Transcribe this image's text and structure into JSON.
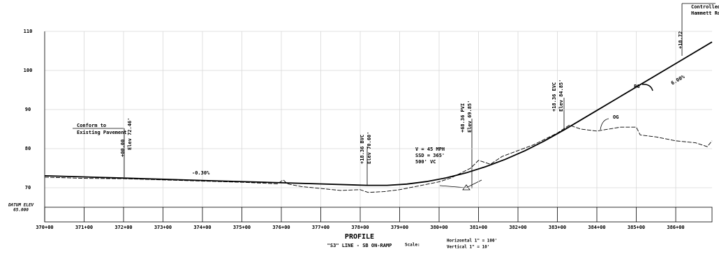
{
  "chart_data": {
    "type": "line",
    "xlim": [
      370,
      386.92
    ],
    "ylim": [
      65,
      110
    ],
    "xticks": [
      {
        "value": 370,
        "label": "370+00"
      },
      {
        "value": 371,
        "label": "371+00"
      },
      {
        "value": 372,
        "label": "372+00"
      },
      {
        "value": 373,
        "label": "373+00"
      },
      {
        "value": 374,
        "label": "374+00"
      },
      {
        "value": 375,
        "label": "375+00"
      },
      {
        "value": 376,
        "label": "376+00"
      },
      {
        "value": 377,
        "label": "377+00"
      },
      {
        "value": 378,
        "label": "378+00"
      },
      {
        "value": 379,
        "label": "379+00"
      },
      {
        "value": 380,
        "label": "380+00"
      },
      {
        "value": 381,
        "label": "381+00"
      },
      {
        "value": 382,
        "label": "382+00"
      },
      {
        "value": 383,
        "label": "383+00"
      },
      {
        "value": 384,
        "label": "384+00"
      },
      {
        "value": 385,
        "label": "385+00"
      },
      {
        "value": 386,
        "label": "386+00"
      }
    ],
    "yticks": [
      70,
      80,
      90,
      100,
      110
    ],
    "grid": true,
    "series": [
      {
        "name": "PG",
        "color": "#000000",
        "x": [
          370,
          372,
          374,
          376,
          378.18,
          378.68,
          379.18,
          379.68,
          380.18,
          380.68,
          381.18,
          381.68,
          382.18,
          382.68,
          383.18,
          384,
          385,
          386,
          386.92
        ],
        "values": [
          73.06,
          72.46,
          71.86,
          71.26,
          70.6,
          70.61,
          70.93,
          71.57,
          72.52,
          73.79,
          75.37,
          77.27,
          79.48,
          82.01,
          84.85,
          89.77,
          95.77,
          101.77,
          107.29
        ]
      },
      {
        "name": "OG",
        "color": "#000000",
        "x": [
          370,
          371,
          372,
          373,
          374,
          375,
          375.9,
          376.05,
          376.15,
          376.5,
          377,
          377.5,
          378,
          378.2,
          378.6,
          379,
          379.5,
          380,
          380.3,
          380.6,
          380.8,
          381,
          381.3,
          381.6,
          382,
          382.4,
          382.8,
          383,
          383.3,
          383.6,
          384,
          384.3,
          384.6,
          385,
          385.1,
          385.5,
          386,
          386.5,
          386.8,
          386.92
        ],
        "values": [
          72.7,
          72.4,
          72.3,
          72,
          71.7,
          71.4,
          71,
          72,
          71,
          70.3,
          69.8,
          69.3,
          69.5,
          68.8,
          69,
          69.5,
          70.5,
          71.5,
          72.5,
          74,
          75,
          77,
          76,
          78,
          79.5,
          81,
          83,
          84,
          86,
          85,
          84.5,
          85,
          85.5,
          85.5,
          83.5,
          83,
          82,
          81.5,
          80.5,
          82
        ]
      }
    ],
    "annotations": [
      "Conform to",
      "Existing Pavement",
      "+00.00",
      "Elev 72.46'",
      "-0.30%",
      "+18.36 BVC",
      "Elev 70.60'",
      "V = 45 MPH",
      "SSD = 365'",
      "500' VC",
      "+68.36 PVI",
      "Elev 69.85'",
      "+18.36 EVC",
      "Elev 84.85'",
      "OG",
      "PG",
      "6.00%",
      "+18.72",
      "Controlled By",
      "Hammett Road",
      "DATUM ELEV",
      "65.000",
      "PROFILE",
      "\"S3\" LINE - SB ON-RAMP",
      "Scale:",
      "Horizontal 1\" = 100'",
      "Vertical 1\" = 10'"
    ]
  }
}
